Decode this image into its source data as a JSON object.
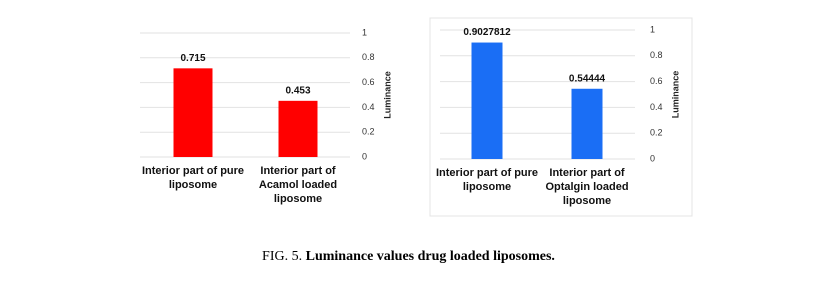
{
  "chart_data": [
    {
      "type": "bar",
      "y_label": "Luminance",
      "categories": [
        "Interior part of pure liposome",
        "Interior part of Acamol loaded liposome"
      ],
      "values": [
        0.715,
        0.453
      ],
      "color": "#ff0000",
      "ylim": [
        0,
        1
      ],
      "yticks": [
        0,
        0.2,
        0.4,
        0.6,
        0.8,
        1
      ],
      "grid": true
    },
    {
      "type": "bar",
      "y_label": "Luminance",
      "categories": [
        "Interior part of pure liposome",
        "Interior part of Optalgin loaded liposome"
      ],
      "values": [
        0.9027812,
        0.54444
      ],
      "color": "#1a6ef5",
      "ylim": [
        0,
        1
      ],
      "yticks": [
        0,
        0.2,
        0.4,
        0.6,
        0.8,
        1
      ],
      "grid": true
    }
  ],
  "caption": {
    "prefix": "FIG. 5.",
    "text": "Luminance values drug loaded liposomes."
  }
}
